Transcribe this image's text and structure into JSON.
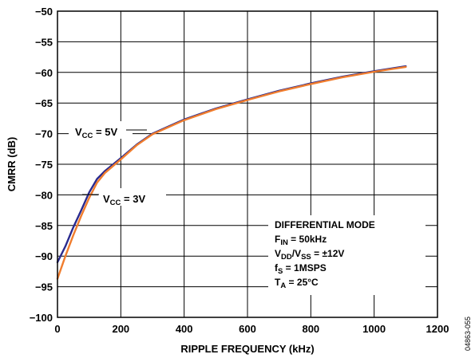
{
  "chart_data": {
    "type": "line",
    "xlabel": "RIPPLE FREQUENCY (kHz)",
    "ylabel": "CMRR (dB)",
    "xlim": [
      0,
      1200
    ],
    "ylim": [
      -100,
      -50
    ],
    "xticks": [
      0,
      200,
      400,
      600,
      800,
      1000,
      1200
    ],
    "yticks": [
      -50,
      -55,
      -60,
      -65,
      -70,
      -75,
      -80,
      -85,
      -90,
      -95,
      -100
    ],
    "grid": true,
    "series": [
      {
        "name": "VCC = 5V",
        "color": "#2a2a8e",
        "x": [
          0,
          25,
          50,
          75,
          100,
          125,
          150,
          200,
          250,
          300,
          400,
          500,
          600,
          700,
          800,
          900,
          1000,
          1100
        ],
        "y": [
          -91,
          -88.4,
          -85.3,
          -82.5,
          -79.6,
          -77.4,
          -76.1,
          -74.0,
          -71.8,
          -70.0,
          -67.7,
          -65.9,
          -64.4,
          -63.0,
          -61.8,
          -60.7,
          -59.8,
          -59.0
        ]
      },
      {
        "name": "VCC = 3V",
        "color": "#f07d2e",
        "x": [
          0,
          25,
          50,
          75,
          100,
          125,
          150,
          200,
          250,
          300,
          400,
          500,
          600,
          700,
          800,
          900,
          1000,
          1100
        ],
        "y": [
          -93.7,
          -90.0,
          -86.6,
          -83.4,
          -80.5,
          -78.0,
          -76.4,
          -74.2,
          -71.9,
          -70.1,
          -67.8,
          -66.0,
          -64.5,
          -63.1,
          -61.9,
          -60.8,
          -59.9,
          -59.1
        ]
      }
    ],
    "labels": {
      "vcc5": {
        "main": "V",
        "sub": "CC",
        "rest": " = 5V"
      },
      "vcc3": {
        "main": "V",
        "sub": "CC",
        "rest": " = 3V"
      }
    },
    "conditions": {
      "line1": "DIFFERENTIAL MODE",
      "line2": {
        "main": "F",
        "sub": "IN",
        "rest": " = 50kHz"
      },
      "line3": {
        "main1": "V",
        "sub1": "DD",
        "mid": "/V",
        "sub2": "SS",
        "rest": " = ±12V"
      },
      "line4": {
        "main": "f",
        "sub": "S",
        "rest": " = 1MSPS"
      },
      "line5": {
        "main": "T",
        "sub": "A",
        "rest": " = 25°C"
      }
    },
    "figure_id": "04863-055"
  }
}
